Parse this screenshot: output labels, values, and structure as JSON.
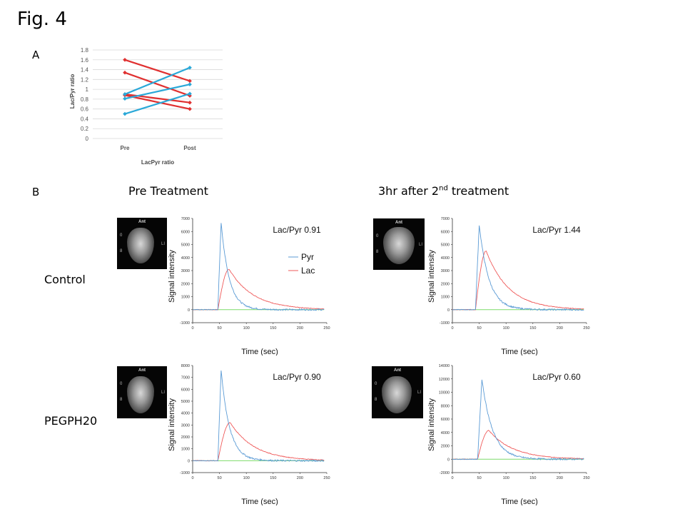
{
  "figure": {
    "title": "Fig. 4",
    "panel_a_label": "A",
    "panel_b_label": "B",
    "col_pre": "Pre Treatment",
    "col_post_prefix": "3hr after 2",
    "col_post_sup": "nd",
    "col_post_suffix": " treatment",
    "row_control": "Control",
    "row_peg": "PEGPH20",
    "mri_ant": "Ant",
    "colors": {
      "red": "#e03030",
      "blue": "#2aa8d8",
      "pyr": "#5b9bd5",
      "lac": "#ef5a5a",
      "baseline": "#7ddc6a"
    }
  },
  "chart_data": [
    {
      "id": "A",
      "type": "line",
      "title": "",
      "xlabel": "LacPyr ratio",
      "ylabel": "Lac/Pyr ratio",
      "categories": [
        "Pre",
        "Post"
      ],
      "ylim": [
        0,
        1.8
      ],
      "yticks": [
        "0",
        "0.2",
        "0.4",
        "0.6",
        "0.8",
        "1",
        "1.2",
        "1.4",
        "1.6",
        "1.8"
      ],
      "series": [
        {
          "name": "red-1",
          "color": "red",
          "values": [
            1.6,
            1.17
          ]
        },
        {
          "name": "red-2",
          "color": "red",
          "values": [
            1.34,
            0.87
          ]
        },
        {
          "name": "red-3",
          "color": "red",
          "values": [
            0.9,
            0.73
          ]
        },
        {
          "name": "red-4",
          "color": "red",
          "values": [
            0.88,
            0.6
          ]
        },
        {
          "name": "blue-1",
          "color": "blue",
          "values": [
            0.9,
            1.44
          ]
        },
        {
          "name": "blue-2",
          "color": "blue",
          "values": [
            0.81,
            1.1
          ]
        },
        {
          "name": "blue-3",
          "color": "blue",
          "values": [
            0.5,
            0.91
          ]
        }
      ]
    },
    {
      "id": "B1",
      "type": "line",
      "title": "Lac/Pyr 0.91",
      "xlabel": "Time (sec)",
      "ylabel": "Signal intensity",
      "xlim": [
        0,
        250
      ],
      "xticks": [
        "0",
        "50",
        "100",
        "150",
        "200",
        "250"
      ],
      "ylim": [
        -1000,
        7000
      ],
      "yticks": [
        "-1000",
        "0",
        "1000",
        "2000",
        "3000",
        "4000",
        "5000",
        "6000",
        "7000"
      ],
      "legend": [
        "Pyr",
        "Lac"
      ],
      "pyr": {
        "onset": 47,
        "peak_t": 53,
        "peak": 6700,
        "decay": 15
      },
      "lac": {
        "onset": 47,
        "peak_t": 68,
        "peak": 3100,
        "decay": 45
      }
    },
    {
      "id": "B2",
      "type": "line",
      "title": "Lac/Pyr 1.44",
      "xlabel": "Time (sec)",
      "ylabel": "Signal intensity",
      "xlim": [
        0,
        250
      ],
      "xticks": [
        "0",
        "50",
        "100",
        "150",
        "200",
        "250"
      ],
      "ylim": [
        -1000,
        7000
      ],
      "yticks": [
        "-1000",
        "0",
        "1000",
        "2000",
        "3000",
        "4000",
        "5000",
        "6000",
        "7000"
      ],
      "pyr": {
        "onset": 43,
        "peak_t": 50,
        "peak": 6500,
        "decay": 18
      },
      "lac": {
        "onset": 43,
        "peak_t": 63,
        "peak": 4500,
        "decay": 42
      }
    },
    {
      "id": "B3",
      "type": "line",
      "title": "Lac/Pyr 0.90",
      "xlabel": "Time (sec)",
      "ylabel": "Signal intensity",
      "xlim": [
        0,
        250
      ],
      "xticks": [
        "0",
        "50",
        "100",
        "150",
        "200",
        "250"
      ],
      "ylim": [
        -1000,
        8000
      ],
      "yticks": [
        "-1000",
        "0",
        "1000",
        "2000",
        "3000",
        "4000",
        "5000",
        "6000",
        "7000",
        "8000"
      ],
      "pyr": {
        "onset": 47,
        "peak_t": 53,
        "peak": 7600,
        "decay": 16
      },
      "lac": {
        "onset": 47,
        "peak_t": 70,
        "peak": 3200,
        "decay": 45
      }
    },
    {
      "id": "B4",
      "type": "line",
      "title": "Lac/Pyr 0.60",
      "xlabel": "Time (sec)",
      "ylabel": "Signal intensity",
      "xlim": [
        0,
        250
      ],
      "xticks": [
        "0",
        "50",
        "100",
        "150",
        "200",
        "250"
      ],
      "ylim": [
        -2000,
        14000
      ],
      "yticks": [
        "-2000",
        "0",
        "2000",
        "4000",
        "6000",
        "8000",
        "10000",
        "12000",
        "14000"
      ],
      "pyr": {
        "onset": 47,
        "peak_t": 55,
        "peak": 12000,
        "decay": 20
      },
      "lac": {
        "onset": 47,
        "peak_t": 68,
        "peak": 4300,
        "decay": 45
      }
    }
  ]
}
